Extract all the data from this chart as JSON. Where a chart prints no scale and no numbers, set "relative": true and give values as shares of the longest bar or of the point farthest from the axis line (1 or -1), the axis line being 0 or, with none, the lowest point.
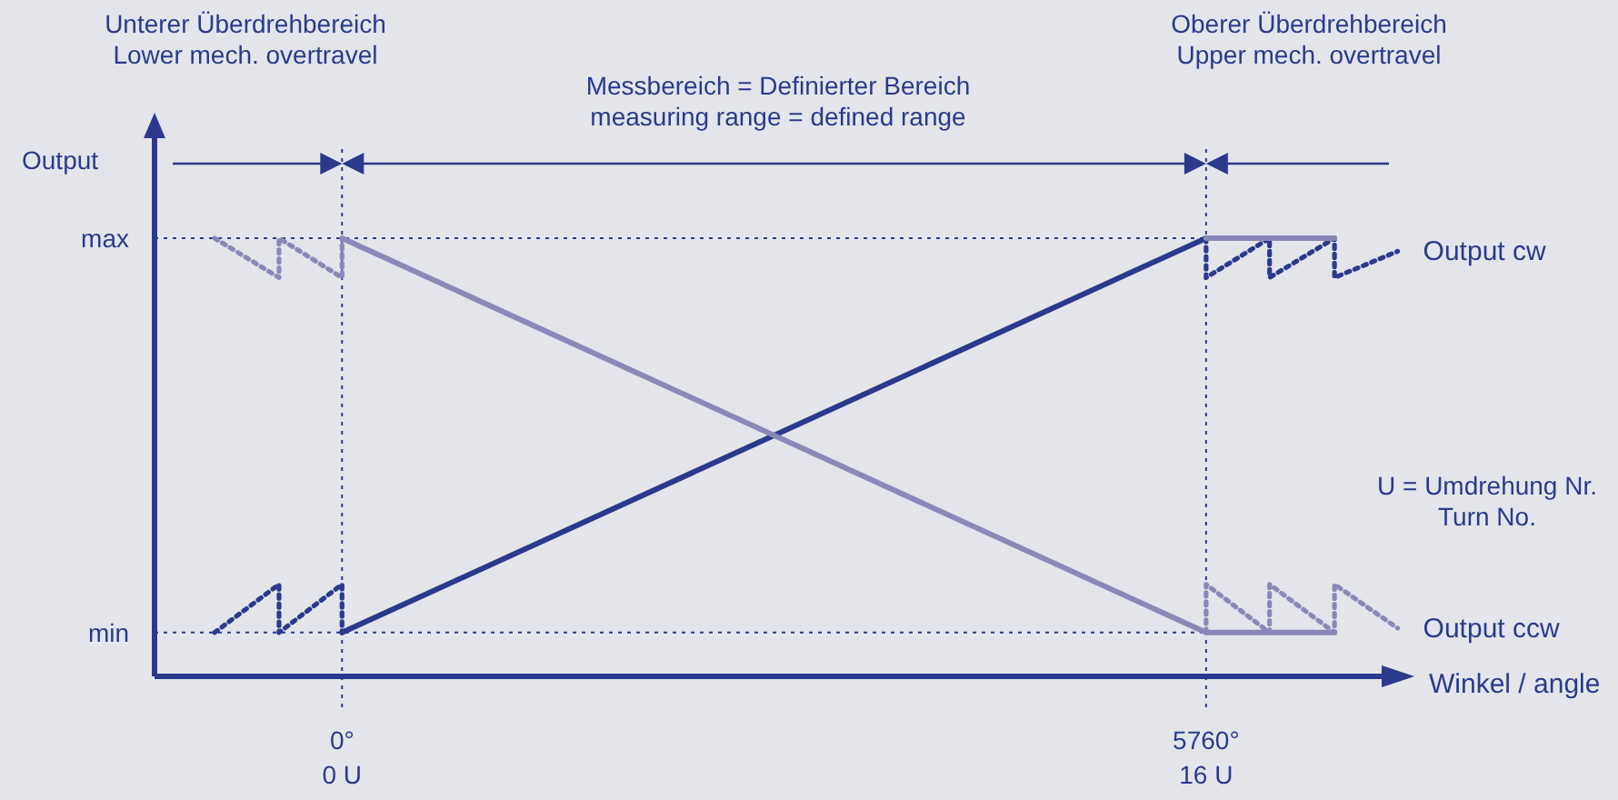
{
  "chart_data": {
    "type": "line",
    "relative": true,
    "xlabel": "Winkel / angle",
    "ylabel": "Output",
    "xlim": [
      -1250,
      7100
    ],
    "xticks": [
      {
        "value": 0,
        "label": "0°"
      },
      {
        "value": 5760,
        "label": "5760°"
      }
    ],
    "series": [
      {
        "name": "Output cw",
        "color": "#2b3a8c",
        "line_style": "dotted",
        "x": [
          5760,
          5760,
          6183,
          6183,
          6616,
          6616,
          7037
        ],
        "values": [
          1,
          0.91,
          1,
          0.91,
          1,
          0.91,
          0.97
        ]
      },
      {
        "color": "#2b3a8c",
        "line_style": "solid",
        "x": [
          0,
          5760
        ],
        "values": [
          0.1,
          1
        ]
      },
      {
        "color": "#2b3a8c",
        "line_style": "dotted",
        "x": [
          -850,
          -420,
          -420,
          0,
          0
        ],
        "values": [
          0.1,
          0.21,
          0.1,
          0.21,
          0.1
        ]
      },
      {
        "name": "Output ccw",
        "color": "#8a88b8",
        "line_style": "dotted",
        "x": [
          5760,
          5760,
          6183,
          6183,
          6616,
          6616,
          7037
        ],
        "values": [
          0.1,
          0.21,
          0.1,
          0.21,
          0.1,
          0.21,
          0.11
        ]
      },
      {
        "color": "#8a88b8",
        "line_style": "solid",
        "x": [
          0,
          5760,
          6616
        ],
        "values": [
          1,
          0.1,
          0.1
        ]
      },
      {
        "color": "#8a88b8",
        "line_style": "dotted",
        "x": [
          -850,
          -420,
          -420,
          0,
          0
        ],
        "values": [
          1,
          0.91,
          1,
          0.91,
          1
        ]
      },
      {
        "color": "#8a88b8",
        "line_style": "solid",
        "x": [
          5760,
          6616
        ],
        "values": [
          1,
          1
        ]
      }
    ],
    "ref_lines": [
      {
        "axis": "x",
        "value": 0,
        "label": "0 U",
        "line_style": "dotted",
        "color": "#2b3a8c"
      },
      {
        "axis": "x",
        "value": 5760,
        "label": "16 U",
        "line_style": "dotted",
        "color": "#2b3a8c"
      },
      {
        "axis": "y",
        "value": 0,
        "line_style": "solid",
        "color": "#2b3a8c"
      },
      {
        "axis": "y",
        "value": 0.1,
        "label": "min",
        "line_style": "dotted",
        "color": "#2b3a8c"
      },
      {
        "axis": "y",
        "value": 1,
        "label": "max",
        "line_style": "dotted",
        "color": "#2b3a8c"
      }
    ],
    "annotations": [
      "Unterer Überdrehbereich\nLower mech. overtravel",
      "Messbereich = Definierter Bereich\nmeasuring range = defined range",
      "Oberer Überdrehbereich\nUpper mech. overtravel",
      "U = Umdrehung Nr.\nTurn No."
    ]
  }
}
